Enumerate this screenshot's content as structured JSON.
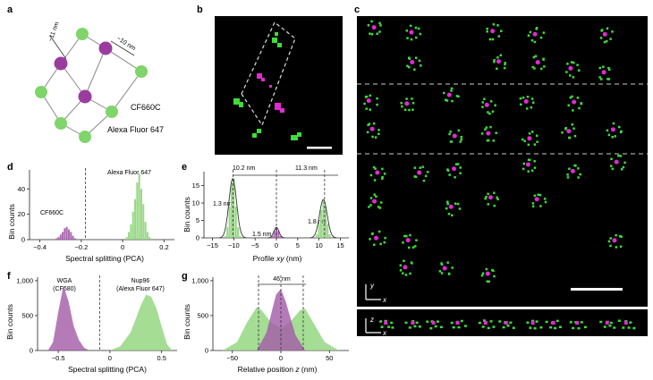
{
  "panels": {
    "a": {
      "label": "a",
      "dims": [
        "~11 nm",
        "~10 nm"
      ],
      "labels": [
        "CF660C",
        "Alexa Fluor 647"
      ]
    },
    "b": {
      "label": "b"
    },
    "c": {
      "label": "c",
      "axes_top": [
        "y",
        "x"
      ],
      "axes_bottom": [
        "z",
        "x"
      ]
    },
    "d": {
      "label": "d",
      "xlabel": "Spectral splitting (PCA)",
      "ylabel": "Bin counts",
      "annotations": [
        "CF660C",
        "Alexa Fluor  647"
      ],
      "xticks": [
        "−0.4",
        "−0.2",
        "0",
        "0.2"
      ],
      "yticks": [
        "0",
        "20",
        "40"
      ]
    },
    "e": {
      "label": "e",
      "xlabel_prefix": "Profile ",
      "xlabel_var": "xy",
      "xlabel_suffix": " (nm)",
      "ylabel": "Bin counts",
      "annotations": [
        "10.2 nm",
        "11.3 nm",
        "1.3 nm",
        "1.5 nm",
        "1.8 nm"
      ],
      "xticks": [
        "−15",
        "−10",
        "−5",
        "0",
        "5",
        "10",
        "15"
      ],
      "yticks": [
        "0",
        "5",
        "10",
        "15"
      ]
    },
    "f": {
      "label": "f",
      "xlabel": "Spectral splitting (PCA)",
      "ylabel": "Bin counts",
      "annotations": [
        "WGA",
        "(CF680)",
        "Nup96",
        "(Alexa Fluor  647)"
      ],
      "xticks": [
        "−0.5",
        "0",
        "0.5"
      ],
      "yticks": [
        "0",
        "500",
        "1,000"
      ]
    },
    "g": {
      "label": "g",
      "xlabel_prefix": "Relative position ",
      "xlabel_var": "z",
      "xlabel_suffix": " (nm)",
      "ylabel": "Bin counts",
      "annotations": [
        "46 nm"
      ],
      "xticks": [
        "−50",
        "0",
        "50"
      ],
      "yticks": [
        "0",
        "500",
        "1,000"
      ]
    }
  },
  "colors": {
    "magenta": "#a35aa8",
    "green": "#8fd47a",
    "dark_green": "#3e7a3a"
  },
  "chart_data": [
    {
      "type": "bar",
      "panel": "d",
      "xlim": [
        -0.45,
        0.25
      ],
      "ylim": [
        0,
        55
      ],
      "series": [
        {
          "color": "#a35aa8",
          "x": [
            -0.32,
            -0.31,
            -0.3,
            -0.29,
            -0.28,
            -0.27,
            -0.26,
            -0.25,
            -0.24,
            -0.23
          ],
          "values": [
            1,
            2,
            4,
            6,
            9,
            10,
            8,
            6,
            3,
            1
          ]
        },
        {
          "color": "#8fd47a",
          "x": [
            0.02,
            0.03,
            0.04,
            0.05,
            0.06,
            0.07,
            0.08,
            0.09,
            0.1,
            0.11,
            0.12,
            0.13
          ],
          "values": [
            2,
            6,
            12,
            22,
            32,
            45,
            52,
            40,
            28,
            14,
            6,
            2
          ]
        }
      ],
      "vline": -0.18
    },
    {
      "type": "bar",
      "panel": "e",
      "xlim": [
        -17,
        17
      ],
      "ylim": [
        0,
        19
      ],
      "series": [
        {
          "color": "#8fd47a",
          "x": [
            -12,
            -11.5,
            -11,
            -10.5,
            -10,
            -9.5,
            -9,
            -8.5
          ],
          "values": [
            0.5,
            3,
            9,
            16,
            17,
            9,
            3,
            0.5
          ]
        },
        {
          "color": "#a35aa8",
          "x": [
            -1,
            -0.5,
            0,
            0.5,
            1
          ],
          "values": [
            0.5,
            2,
            3,
            2,
            0.5
          ]
        },
        {
          "color": "#8fd47a",
          "x": [
            9.5,
            10,
            10.5,
            11,
            11.5,
            12,
            12.5
          ],
          "values": [
            1,
            4,
            8,
            11,
            9,
            4,
            1
          ]
        }
      ],
      "vlines": [
        -10.2,
        0,
        11.3
      ]
    },
    {
      "type": "area",
      "panel": "f",
      "xlim": [
        -0.7,
        0.65
      ],
      "ylim": [
        0,
        1050
      ],
      "series": [
        {
          "color": "#a35aa8",
          "x": [
            -0.6,
            -0.55,
            -0.5,
            -0.45,
            -0.4,
            -0.35,
            -0.3,
            -0.25,
            -0.2
          ],
          "values": [
            0,
            120,
            550,
            930,
            700,
            350,
            150,
            40,
            0
          ]
        },
        {
          "color": "#8fd47a",
          "x": [
            0,
            0.1,
            0.2,
            0.3,
            0.35,
            0.4,
            0.45,
            0.5,
            0.55,
            0.6
          ],
          "values": [
            0,
            60,
            260,
            650,
            800,
            770,
            600,
            350,
            100,
            0
          ]
        }
      ],
      "vline": -0.1
    },
    {
      "type": "area",
      "panel": "g",
      "xlim": [
        -70,
        70
      ],
      "ylim": [
        0,
        1050
      ],
      "series": [
        {
          "color": "#8fd47a",
          "x": [
            -60,
            -45,
            -35,
            -25,
            -20,
            -10,
            0,
            10,
            20,
            25,
            35,
            45,
            60
          ],
          "values": [
            0,
            120,
            400,
            620,
            580,
            400,
            320,
            420,
            580,
            600,
            360,
            120,
            0
          ]
        },
        {
          "color": "#a35aa8",
          "x": [
            -25,
            -15,
            -5,
            0,
            5,
            15,
            25
          ],
          "values": [
            0,
            250,
            800,
            880,
            700,
            220,
            0
          ]
        }
      ],
      "vlines": [
        -23,
        0,
        23
      ]
    }
  ]
}
